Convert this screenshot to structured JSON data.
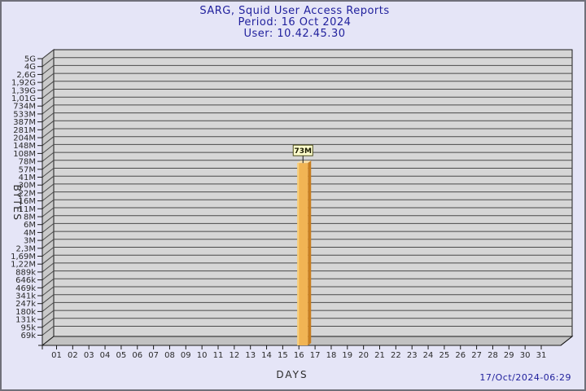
{
  "window": {
    "background_color": "#e5e5f7",
    "border_color": "#70707a"
  },
  "header": {
    "title": "SARG, Squid User Access Reports",
    "period": "Period: 16 Oct 2024",
    "user": "User: 10.42.45.30",
    "text_color": "#1f1f9c"
  },
  "footer": {
    "timestamp": "17/Oct/2024-06:29"
  },
  "chart_data": {
    "type": "bar",
    "style": "3d",
    "title": "SARG, Squid User Access Reports",
    "subtitle": "Period: 16 Oct 2024",
    "subtitle2": "User: 10.42.45.30",
    "xlabel": "DAYS",
    "ylabel": "BYTES",
    "scale": "log",
    "grid": true,
    "x_categories": [
      "01",
      "02",
      "03",
      "04",
      "05",
      "06",
      "07",
      "08",
      "09",
      "10",
      "11",
      "12",
      "13",
      "14",
      "15",
      "16",
      "17",
      "18",
      "19",
      "20",
      "21",
      "22",
      "23",
      "24",
      "25",
      "26",
      "27",
      "28",
      "29",
      "30",
      "31"
    ],
    "y_tick_labels": [
      "5G",
      "4G",
      "2,6G",
      "1,92G",
      "1,39G",
      "1,01G",
      "734M",
      "533M",
      "387M",
      "281M",
      "204M",
      "148M",
      "108M",
      "78M",
      "57M",
      "41M",
      "30M",
      "22M",
      "16M",
      "11M",
      "8M",
      "6M",
      "4M",
      "3M",
      "2,3M",
      "1,69M",
      "1,22M",
      "889k",
      "646k",
      "469k",
      "341k",
      "247k",
      "180k",
      "131k",
      "95k",
      "69k"
    ],
    "y_range_bytes": [
      69000,
      5000000000
    ],
    "bars": [
      {
        "day": "16",
        "value": 73000000,
        "label": "73M"
      }
    ],
    "colors": {
      "plot_wall": "#d6d6d6",
      "side_wall": "#c9c9c9",
      "floor": "#c2c2c2",
      "gridline": "#4a4a4a",
      "axis": "#1a1a1a",
      "tick_text": "#2a2a2a",
      "bar_front": "#f1b454",
      "bar_highlight": "#f9d27f",
      "bar_side": "#c87e20",
      "bar_top": "#f6deaa",
      "value_box_bg": "#ffffcd",
      "value_box_border": "#4b4b1a",
      "value_text": "#1a1a00"
    }
  }
}
